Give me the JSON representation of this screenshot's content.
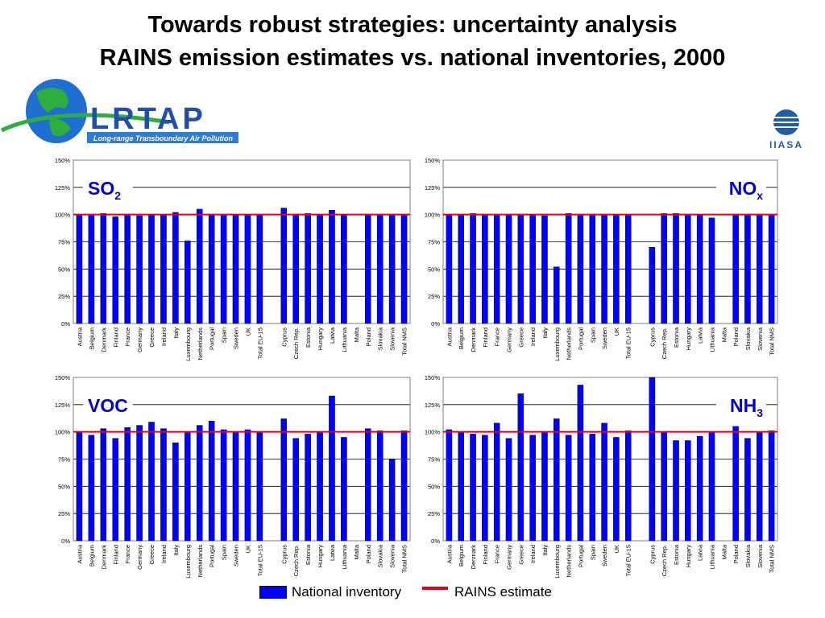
{
  "slide": {
    "title_line1": "Towards robust strategies: uncertainty analysis",
    "title_line2": "RAINS emission estimates  vs. national inventories, 2000"
  },
  "logos": {
    "left_text": "LRTAP",
    "left_subtitle": "Long-range Transboundary Air Pollution",
    "right_text": "IIASA"
  },
  "legend": {
    "national_inventory": "National inventory",
    "rains_estimate": "RAINS estimate"
  },
  "colors": {
    "bar": "#0000ff",
    "reference_line": "#e0001b",
    "grid": "#000000"
  },
  "chart_data": [
    {
      "type": "bar",
      "label": "SO2",
      "label_main": "SO",
      "label_sub": "2",
      "label_position": "top-left",
      "ylim": [
        0,
        150
      ],
      "yticks": [
        "0%",
        "25%",
        "50%",
        "75%",
        "100%",
        "125%",
        "150%"
      ],
      "reference_line": 100,
      "categories": [
        "Austria",
        "Belgium",
        "Denmark",
        "Finland",
        "France",
        "Germany",
        "Greece",
        "Ireland",
        "Italy",
        "Luxembourg",
        "Netherlands",
        "Portugal",
        "Spain",
        "Sweden",
        "UK",
        "Total EU-15",
        "",
        "Cyprus",
        "Czech Rep.",
        "Estonia",
        "Hungary",
        "Latvia",
        "Lithuania",
        "Malta",
        "Poland",
        "Slovakia",
        "Slovenia",
        "Total NMS"
      ],
      "values": [
        100,
        100,
        101,
        98,
        100,
        99,
        100,
        100,
        102,
        76,
        105,
        100,
        100,
        100,
        100,
        100,
        null,
        106,
        100,
        101,
        100,
        104,
        100,
        null,
        100,
        100,
        100,
        100
      ]
    },
    {
      "type": "bar",
      "label": "NOx",
      "label_main": "NO",
      "label_sub": "x",
      "label_position": "top-right",
      "ylim": [
        0,
        150
      ],
      "yticks": [
        "0%",
        "25%",
        "50%",
        "75%",
        "100%",
        "125%",
        "150%"
      ],
      "reference_line": 100,
      "categories": [
        "Austria",
        "Belgium",
        "Denmark",
        "Finland",
        "France",
        "Germany",
        "Greece",
        "Ireland",
        "Italy",
        "Luxembourg",
        "Netherlands",
        "Portugal",
        "Spain",
        "Sweden",
        "UK",
        "Total EU-15",
        "",
        "Cyprus",
        "Czech Rep.",
        "Estonia",
        "Hungary",
        "Latvia",
        "Lithuania",
        "Malta",
        "Poland",
        "Slovakia",
        "Slovenia",
        "Total NMS"
      ],
      "values": [
        100,
        100,
        101,
        100,
        100,
        100,
        100,
        100,
        99,
        52,
        101,
        100,
        100,
        100,
        100,
        100,
        null,
        70,
        101,
        101,
        100,
        100,
        97,
        null,
        100,
        100,
        100,
        100
      ]
    },
    {
      "type": "bar",
      "label": "VOC",
      "label_main": "VOC",
      "label_sub": "",
      "label_position": "top-left",
      "ylim": [
        0,
        150
      ],
      "yticks": [
        "0%",
        "25%",
        "50%",
        "75%",
        "100%",
        "125%",
        "150%"
      ],
      "reference_line": 100,
      "categories": [
        "Austria",
        "Belgium",
        "Denmark",
        "Finland",
        "France",
        "Germany",
        "Greece",
        "Ireland",
        "Italy",
        "Luxembourg",
        "Netherlands",
        "Portugal",
        "Spain",
        "Sweden",
        "UK",
        "Total EU-15",
        "",
        "Cyprus",
        "Czech Rep.",
        "Estonia",
        "Hungary",
        "Latvia",
        "Lithuania",
        "Malta",
        "Poland",
        "Slovakia",
        "Slovenia",
        "Total NMS"
      ],
      "values": [
        100,
        97,
        103,
        94,
        104,
        106,
        109,
        103,
        90,
        100,
        106,
        110,
        102,
        100,
        102,
        100,
        null,
        112,
        94,
        98,
        100,
        133,
        95,
        null,
        103,
        101,
        75,
        101
      ]
    },
    {
      "type": "bar",
      "label": "NH3",
      "label_main": "NH",
      "label_sub": "3",
      "label_position": "top-right",
      "ylim": [
        0,
        150
      ],
      "yticks": [
        "0%",
        "25%",
        "50%",
        "75%",
        "100%",
        "125%",
        "150%"
      ],
      "reference_line": 100,
      "categories": [
        "Austria",
        "Belgium",
        "Denmark",
        "Finland",
        "France",
        "Germany",
        "Greece",
        "Ireland",
        "Italy",
        "Luxembourg",
        "Netherlands",
        "Portugal",
        "Spain",
        "Sweden",
        "UK",
        "Total EU-15",
        "",
        "Cyprus",
        "Czech Rep.",
        "Estonia",
        "Hungary",
        "Latvia",
        "Lithuania",
        "Malta",
        "Poland",
        "Slovakia",
        "Slovenia",
        "Total NMS"
      ],
      "values": [
        102,
        100,
        98,
        97,
        108,
        94,
        135,
        97,
        100,
        112,
        97,
        143,
        98,
        108,
        95,
        101,
        null,
        150,
        100,
        92,
        92,
        96,
        100,
        null,
        105,
        94,
        100,
        101
      ]
    }
  ]
}
